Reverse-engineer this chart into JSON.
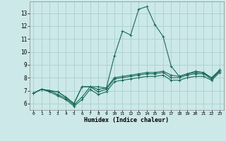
{
  "xlabel": "Humidex (Indice chaleur)",
  "bg_color": "#cce8e8",
  "grid_color": "#aacfcf",
  "line_color": "#1a6b5a",
  "series": [
    [
      6.8,
      7.1,
      7.0,
      6.9,
      6.5,
      6.0,
      7.3,
      7.3,
      7.3,
      7.2,
      9.7,
      11.6,
      11.3,
      13.3,
      13.5,
      12.1,
      11.2,
      8.9,
      8.1,
      8.3,
      8.5,
      8.4,
      7.9,
      8.6
    ],
    [
      6.8,
      7.1,
      7.0,
      6.9,
      6.5,
      6.0,
      7.3,
      7.3,
      7.1,
      7.2,
      8.0,
      8.1,
      8.2,
      8.3,
      8.4,
      8.4,
      8.5,
      8.2,
      8.1,
      8.3,
      8.4,
      8.4,
      8.0,
      8.6
    ],
    [
      6.8,
      7.1,
      7.0,
      6.7,
      6.4,
      5.9,
      6.5,
      7.3,
      6.9,
      7.1,
      7.9,
      8.0,
      8.1,
      8.2,
      8.3,
      8.3,
      8.4,
      8.0,
      8.0,
      8.2,
      8.3,
      8.3,
      7.9,
      8.5
    ],
    [
      6.8,
      7.1,
      6.9,
      6.6,
      6.3,
      5.8,
      6.3,
      7.1,
      6.7,
      6.9,
      7.7,
      7.8,
      7.9,
      8.0,
      8.1,
      8.1,
      8.2,
      7.8,
      7.8,
      8.0,
      8.1,
      8.1,
      7.8,
      8.4
    ]
  ],
  "xlim": [
    -0.5,
    23.5
  ],
  "ylim": [
    5.5,
    13.9
  ],
  "yticks": [
    6,
    7,
    8,
    9,
    10,
    11,
    12,
    13
  ],
  "xticks": [
    0,
    1,
    2,
    3,
    4,
    5,
    6,
    7,
    8,
    9,
    10,
    11,
    12,
    13,
    14,
    15,
    16,
    17,
    18,
    19,
    20,
    21,
    22,
    23
  ],
  "xtick_labels": [
    "0",
    "1",
    "2",
    "3",
    "4",
    "5",
    "6",
    "7",
    "8",
    "9",
    "10",
    "11",
    "12",
    "13",
    "14",
    "15",
    "16",
    "17",
    "18",
    "19",
    "20",
    "21",
    "22",
    "23"
  ],
  "ytick_labels": [
    "6",
    "7",
    "8",
    "9",
    "10",
    "11",
    "12",
    "13"
  ]
}
